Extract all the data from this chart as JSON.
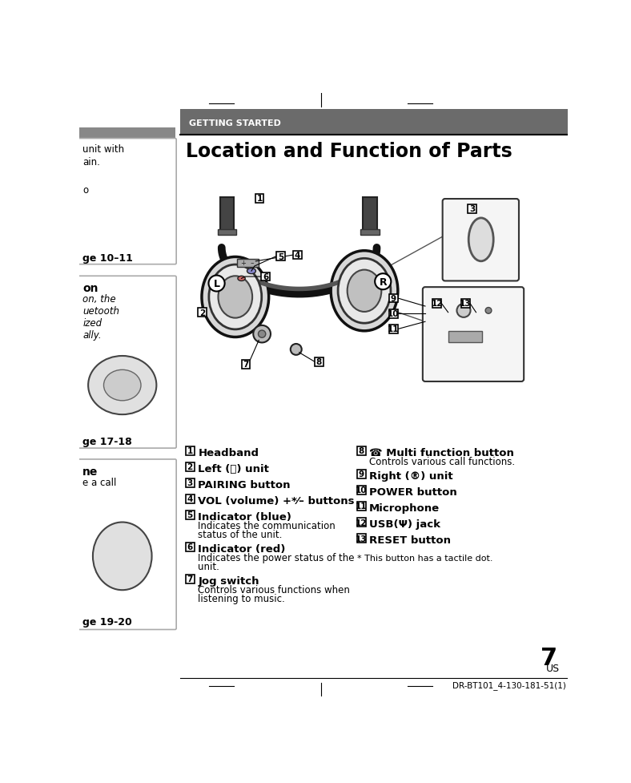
{
  "bg_color": "#ffffff",
  "header_bg": "#6b6b6b",
  "header_text": "GETTING STARTED",
  "header_text_color": "#ffffff",
  "title": "Location and Function of Parts",
  "title_color": "#000000",
  "page_number": "7",
  "page_sub": "US",
  "footer_text": "DR-BT101_4-130-181-51(1)",
  "items_left": [
    {
      "num": "1",
      "bold": "Headband",
      "desc": ""
    },
    {
      "num": "2",
      "bold": "Left (Ⓛ) unit",
      "desc": ""
    },
    {
      "num": "3",
      "bold": "PAIRING button",
      "desc": ""
    },
    {
      "num": "4",
      "bold": "VOL (volume) +*⁄– buttons",
      "desc": ""
    },
    {
      "num": "5",
      "bold": "Indicator (blue)",
      "desc": "Indicates the communication\nstatus of the unit."
    },
    {
      "num": "6",
      "bold": "Indicator (red)",
      "desc": "Indicates the power status of the\nunit."
    },
    {
      "num": "7",
      "bold": "Jog switch",
      "desc": "Controls various functions when\nlistening to music."
    }
  ],
  "items_right": [
    {
      "num": "8",
      "bold": "Multi function button",
      "desc": "Controls various call functions.",
      "phone_icon": true
    },
    {
      "num": "9",
      "bold": "Right (®) unit",
      "desc": ""
    },
    {
      "num": "10",
      "bold": "POWER button",
      "desc": ""
    },
    {
      "num": "11",
      "bold": "Microphone",
      "desc": ""
    },
    {
      "num": "12",
      "bold": "USB(Ψ) jack",
      "desc": ""
    },
    {
      "num": "13",
      "bold": "RESET button",
      "desc": ""
    }
  ],
  "footnote": "* This button has a tactile dot.",
  "divider_color": "#000000",
  "sidebar_dark_color": "#888888"
}
